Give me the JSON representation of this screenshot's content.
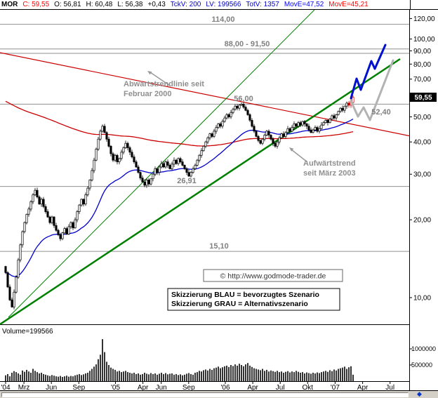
{
  "topbar": {
    "segments": [
      {
        "text": "MOR",
        "color": "#000000",
        "bold": true
      },
      {
        "text": "C: 59,55",
        "color": "#ff0000"
      },
      {
        "text": "O: 56,81",
        "color": "#000000"
      },
      {
        "text": "H: 60,48",
        "color": "#000000"
      },
      {
        "text": "L: 56,38",
        "color": "#000000"
      },
      {
        "text": "+0,43",
        "color": "#000000"
      },
      {
        "text": "TckV: 200",
        "color": "#0000cc"
      },
      {
        "text": "LV: 199566",
        "color": "#0000cc"
      },
      {
        "text": "TotV: 1357",
        "color": "#0000cc"
      },
      {
        "text": "MovE=47,52",
        "color": "#0000ff"
      },
      {
        "text": "MovE=45,21",
        "color": "#ff0000"
      }
    ]
  },
  "price_axis": {
    "ticks": [
      {
        "label": "120,00",
        "price": 120
      },
      {
        "label": "100,00",
        "price": 100
      },
      {
        "label": "90,00",
        "price": 90
      },
      {
        "label": "80,00",
        "price": 80
      },
      {
        "label": "70,00",
        "price": 70
      },
      {
        "label": "60,00",
        "price": 60
      },
      {
        "label": "50,00",
        "price": 50
      },
      {
        "label": "40,00",
        "price": 40
      },
      {
        "label": "30,00",
        "price": 30
      },
      {
        "label": "20,00",
        "price": 20
      },
      {
        "label": "10,00",
        "price": 10
      }
    ],
    "current_label": "59,55",
    "current_price": 59.55
  },
  "levels": [
    {
      "label": "114,00",
      "price": 114
    },
    {
      "label": "88,00 - 91,50",
      "price_low": 88,
      "price_high": 91.5
    },
    {
      "label": "56,00",
      "price": 56
    },
    {
      "label": "26,91",
      "price": 26.91
    },
    {
      "label": "15,10",
      "price": 15.1
    },
    {
      "label": "52,40",
      "price": 52.4,
      "line": false
    }
  ],
  "annotations": {
    "downtrend_line1": "Abwärtstrendlinie seit",
    "downtrend_line2": "Februar 2000",
    "uptrend_line1": "Aufwärtstrend",
    "uptrend_line2": "seit März 2003",
    "watermark": "© http://www.godmode-trader.de",
    "scenario_line1": "Skizzierung BLAU = bevorzugtes Szenario",
    "scenario_line2": "Skizzierung GRAU = Alternativszenario"
  },
  "volume_pane": {
    "label": "Volume=199566",
    "ticks": [
      {
        "label": "1000000",
        "value": 1000000
      },
      {
        "label": "500000",
        "value": 500000
      }
    ]
  },
  "x_axis": {
    "ticks": [
      {
        "label": "'04",
        "month": 0
      },
      {
        "label": "Mrz",
        "month": 2
      },
      {
        "label": "Jun",
        "month": 5
      },
      {
        "label": "Sep",
        "month": 8
      },
      {
        "label": "'05",
        "month": 12
      },
      {
        "label": "Apr",
        "month": 15
      },
      {
        "label": "Jun",
        "month": 17
      },
      {
        "label": "Sep",
        "month": 20
      },
      {
        "label": "'06",
        "month": 24
      },
      {
        "label": "Apr",
        "month": 27
      },
      {
        "label": "Jul",
        "month": 30
      },
      {
        "label": "Okt",
        "month": 33
      },
      {
        "label": "'07",
        "month": 36
      },
      {
        "label": "Apr",
        "month": 39
      },
      {
        "label": "Jul",
        "month": 42
      }
    ]
  },
  "icons": {
    "diamond": "◆"
  },
  "chart_data": {
    "type": "candlestick+volume",
    "symbol": "MOR",
    "scale": "log",
    "interval": "weekly",
    "x_range": [
      "2004-01",
      "2007-08"
    ],
    "ylim": [
      8,
      130
    ],
    "price_axis_ticks": [
      120,
      100,
      90,
      80,
      70,
      60,
      50,
      40,
      30,
      20,
      10
    ],
    "horizontal_levels": [
      114,
      91.5,
      88,
      56,
      26.91,
      15.1
    ],
    "last_price": 59.55,
    "last_candle": {
      "open": 56.81,
      "high": 60.48,
      "low": 56.38,
      "close": 59.55
    },
    "moving_averages": [
      {
        "name": "MovE",
        "value": 47.52,
        "color": "#0000cc"
      },
      {
        "name": "MovE",
        "value": 45.21,
        "color": "#cc0000"
      }
    ],
    "trendlines": [
      {
        "name": "Abwärtstrendlinie seit Februar 2000",
        "direction": "down",
        "color": "red"
      },
      {
        "name": "Aufwärtstrend seit März 2003",
        "direction": "up",
        "color": "green"
      }
    ],
    "scenarios": [
      {
        "name": "BLAU",
        "meaning": "bevorzugtes Szenario",
        "color": "blue",
        "shape": "up-zigzag to ~88"
      },
      {
        "name": "GRAU",
        "meaning": "Alternativszenario",
        "color": "gray",
        "shape": "pullback to ~52,40 then up"
      }
    ],
    "weekly_close": [
      12.5,
      11.0,
      9.8,
      9.2,
      10.5,
      12.0,
      14.0,
      16.0,
      18.0,
      19.5,
      21.0,
      22.0,
      23.5,
      25.0,
      26.0,
      24.5,
      23.0,
      24.0,
      22.5,
      21.5,
      20.5,
      19.5,
      20.5,
      19.0,
      18.2,
      17.5,
      16.9,
      17.8,
      18.5,
      17.6,
      18.8,
      19.5,
      18.6,
      20.0,
      21.5,
      22.8,
      24.0,
      23.0,
      25.0,
      26.5,
      28.5,
      31.0,
      34.0,
      37.5,
      41.0,
      44.0,
      46.0,
      43.5,
      41.0,
      38.5,
      36.0,
      34.0,
      35.5,
      33.5,
      34.5,
      36.5,
      38.0,
      39.5,
      38.0,
      36.5,
      35.0,
      33.5,
      32.0,
      30.5,
      29.0,
      28.0,
      27.2,
      28.5,
      27.5,
      28.8,
      30.0,
      31.5,
      30.5,
      32.0,
      33.0,
      32.0,
      33.5,
      32.5,
      31.5,
      32.8,
      34.0,
      33.0,
      34.5,
      33.5,
      32.5,
      31.5,
      30.5,
      29.5,
      30.5,
      31.5,
      32.5,
      34.0,
      35.5,
      37.0,
      38.5,
      40.0,
      41.5,
      43.0,
      42.0,
      44.0,
      45.5,
      47.0,
      46.0,
      48.0,
      49.5,
      51.0,
      50.0,
      52.0,
      53.5,
      55.0,
      54.0,
      55.5,
      56.0,
      54.5,
      53.0,
      51.0,
      48.5,
      46.0,
      44.0,
      42.0,
      40.5,
      39.5,
      41.0,
      42.5,
      44.0,
      42.5,
      41.0,
      39.5,
      38.5,
      40.0,
      41.5,
      43.0,
      42.0,
      43.5,
      45.0,
      44.0,
      45.5,
      47.0,
      46.0,
      47.5,
      46.5,
      48.0,
      47.0,
      46.0,
      44.5,
      43.5,
      44.5,
      45.5,
      44.0,
      45.0,
      46.5,
      47.5,
      48.5,
      47.5,
      49.0,
      50.5,
      49.5,
      51.0,
      52.5,
      54.0,
      53.0,
      55.0,
      56.5,
      55.5,
      57.5,
      59.55
    ],
    "weekly_volume": [
      180000,
      220000,
      150000,
      260000,
      310000,
      280000,
      240000,
      200000,
      330000,
      290000,
      350000,
      300000,
      260000,
      380000,
      320000,
      280000,
      240000,
      260000,
      220000,
      200000,
      180000,
      160000,
      190000,
      170000,
      150000,
      140000,
      160000,
      130000,
      150000,
      170000,
      140000,
      160000,
      150000,
      180000,
      200000,
      220000,
      190000,
      210000,
      240000,
      260000,
      320000,
      380000,
      450000,
      520000,
      680000,
      820000,
      1300000,
      900000,
      600000,
      500000,
      420000,
      380000,
      350000,
      300000,
      320000,
      280000,
      300000,
      320000,
      280000,
      260000,
      240000,
      260000,
      220000,
      240000,
      200000,
      220000,
      260000,
      230000,
      210000,
      250000,
      220000,
      240000,
      200000,
      230000,
      260000,
      220000,
      250000,
      210000,
      230000,
      240000,
      200000,
      220000,
      190000,
      210000,
      180000,
      200000,
      230000,
      250000,
      220000,
      200000,
      260000,
      280000,
      320000,
      300000,
      340000,
      360000,
      330000,
      380000,
      350000,
      400000,
      420000,
      450000,
      400000,
      430000,
      460000,
      480000,
      440000,
      500000,
      470000,
      520000,
      480000,
      540000,
      500000,
      460000,
      520000,
      560000,
      480000,
      440000,
      400000,
      380000,
      360000,
      340000,
      380000,
      320000,
      350000,
      300000,
      330000,
      310000,
      290000,
      320000,
      280000,
      300000,
      260000,
      290000,
      310000,
      270000,
      300000,
      280000,
      320000,
      290000,
      260000,
      280000,
      240000,
      270000,
      250000,
      230000,
      260000,
      240000,
      270000,
      250000,
      280000,
      300000,
      320000,
      290000,
      340000,
      310000,
      360000,
      330000,
      380000,
      400000,
      420000,
      450000,
      380000,
      430000,
      460000,
      199566
    ]
  }
}
